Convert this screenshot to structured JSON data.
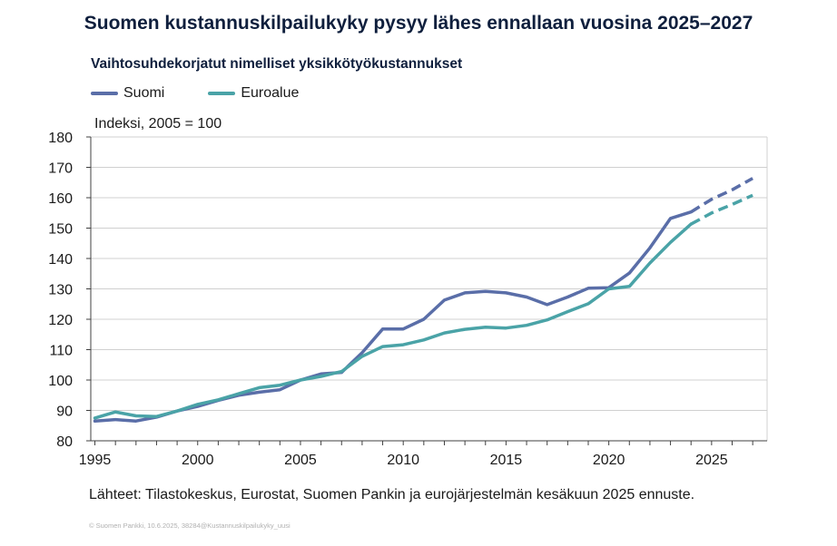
{
  "title": "Suomen kustannuskilpailukyky pysyy lähes ennallaan vuosina 2025–2027",
  "subtitle": "Vaihtosuhdekorjatut nimelliset yksikkötyökustannukset",
  "unit_label": "Indeksi, 2005 = 100",
  "source": "Lähteet: Tilastokeskus, Eurostat, Suomen Pankin ja eurojärjestelmän kesäkuun 2025 ennuste.",
  "footnote": "© Suomen Pankki, 10.6.2025, 38284@Kustannuskilpailukyky_uusi",
  "colors": {
    "suomi": "#5a6ea8",
    "euroalue": "#4aa3a7",
    "grid": "#d0d0d0",
    "axis": "#404040"
  },
  "chart_data": {
    "type": "line",
    "ylim": [
      80,
      180
    ],
    "xlim": [
      1994.8,
      2027.7
    ],
    "yticks": [
      80,
      90,
      100,
      110,
      120,
      130,
      140,
      150,
      160,
      170,
      180
    ],
    "xticks": [
      1995,
      2000,
      2005,
      2010,
      2015,
      2020,
      2025
    ],
    "grid": "horizontal",
    "legend_position": "top-left",
    "forecast_from": 2024,
    "series": [
      {
        "name": "Suomi",
        "color": "#5a6ea8",
        "x": [
          1995,
          1996,
          1997,
          1998,
          1999,
          2000,
          2001,
          2002,
          2003,
          2004,
          2005,
          2006,
          2007,
          2008,
          2009,
          2010,
          2011,
          2012,
          2013,
          2014,
          2015,
          2016,
          2017,
          2018,
          2019,
          2020,
          2021,
          2022,
          2023,
          2024,
          2025,
          2026,
          2027
        ],
        "y": [
          86.5,
          87,
          86.5,
          87.8,
          89.8,
          91.3,
          93.3,
          95,
          96,
          96.8,
          100,
          102,
          102.5,
          109,
          116.8,
          116.8,
          120,
          126.3,
          128.7,
          129.2,
          128.7,
          127.3,
          124.8,
          127.3,
          130.2,
          130.4,
          135.2,
          143.5,
          153.2,
          155.3,
          159.5,
          162.6,
          166.4
        ]
      },
      {
        "name": "Euroalue",
        "color": "#4aa3a7",
        "x": [
          1995,
          1996,
          1997,
          1998,
          1999,
          2000,
          2001,
          2002,
          2003,
          2004,
          2005,
          2006,
          2007,
          2008,
          2009,
          2010,
          2011,
          2012,
          2013,
          2014,
          2015,
          2016,
          2017,
          2018,
          2019,
          2020,
          2021,
          2022,
          2023,
          2024,
          2025,
          2026,
          2027
        ],
        "y": [
          87.5,
          89.5,
          88.2,
          88,
          89.8,
          92,
          93.5,
          95.5,
          97.5,
          98.3,
          100,
          101.2,
          102.8,
          107.8,
          111,
          111.6,
          113.2,
          115.5,
          116.7,
          117.4,
          117.1,
          118,
          119.8,
          122.5,
          125.1,
          130,
          130.8,
          138.5,
          145.3,
          151.3,
          155,
          157.8,
          160.8
        ]
      }
    ]
  }
}
